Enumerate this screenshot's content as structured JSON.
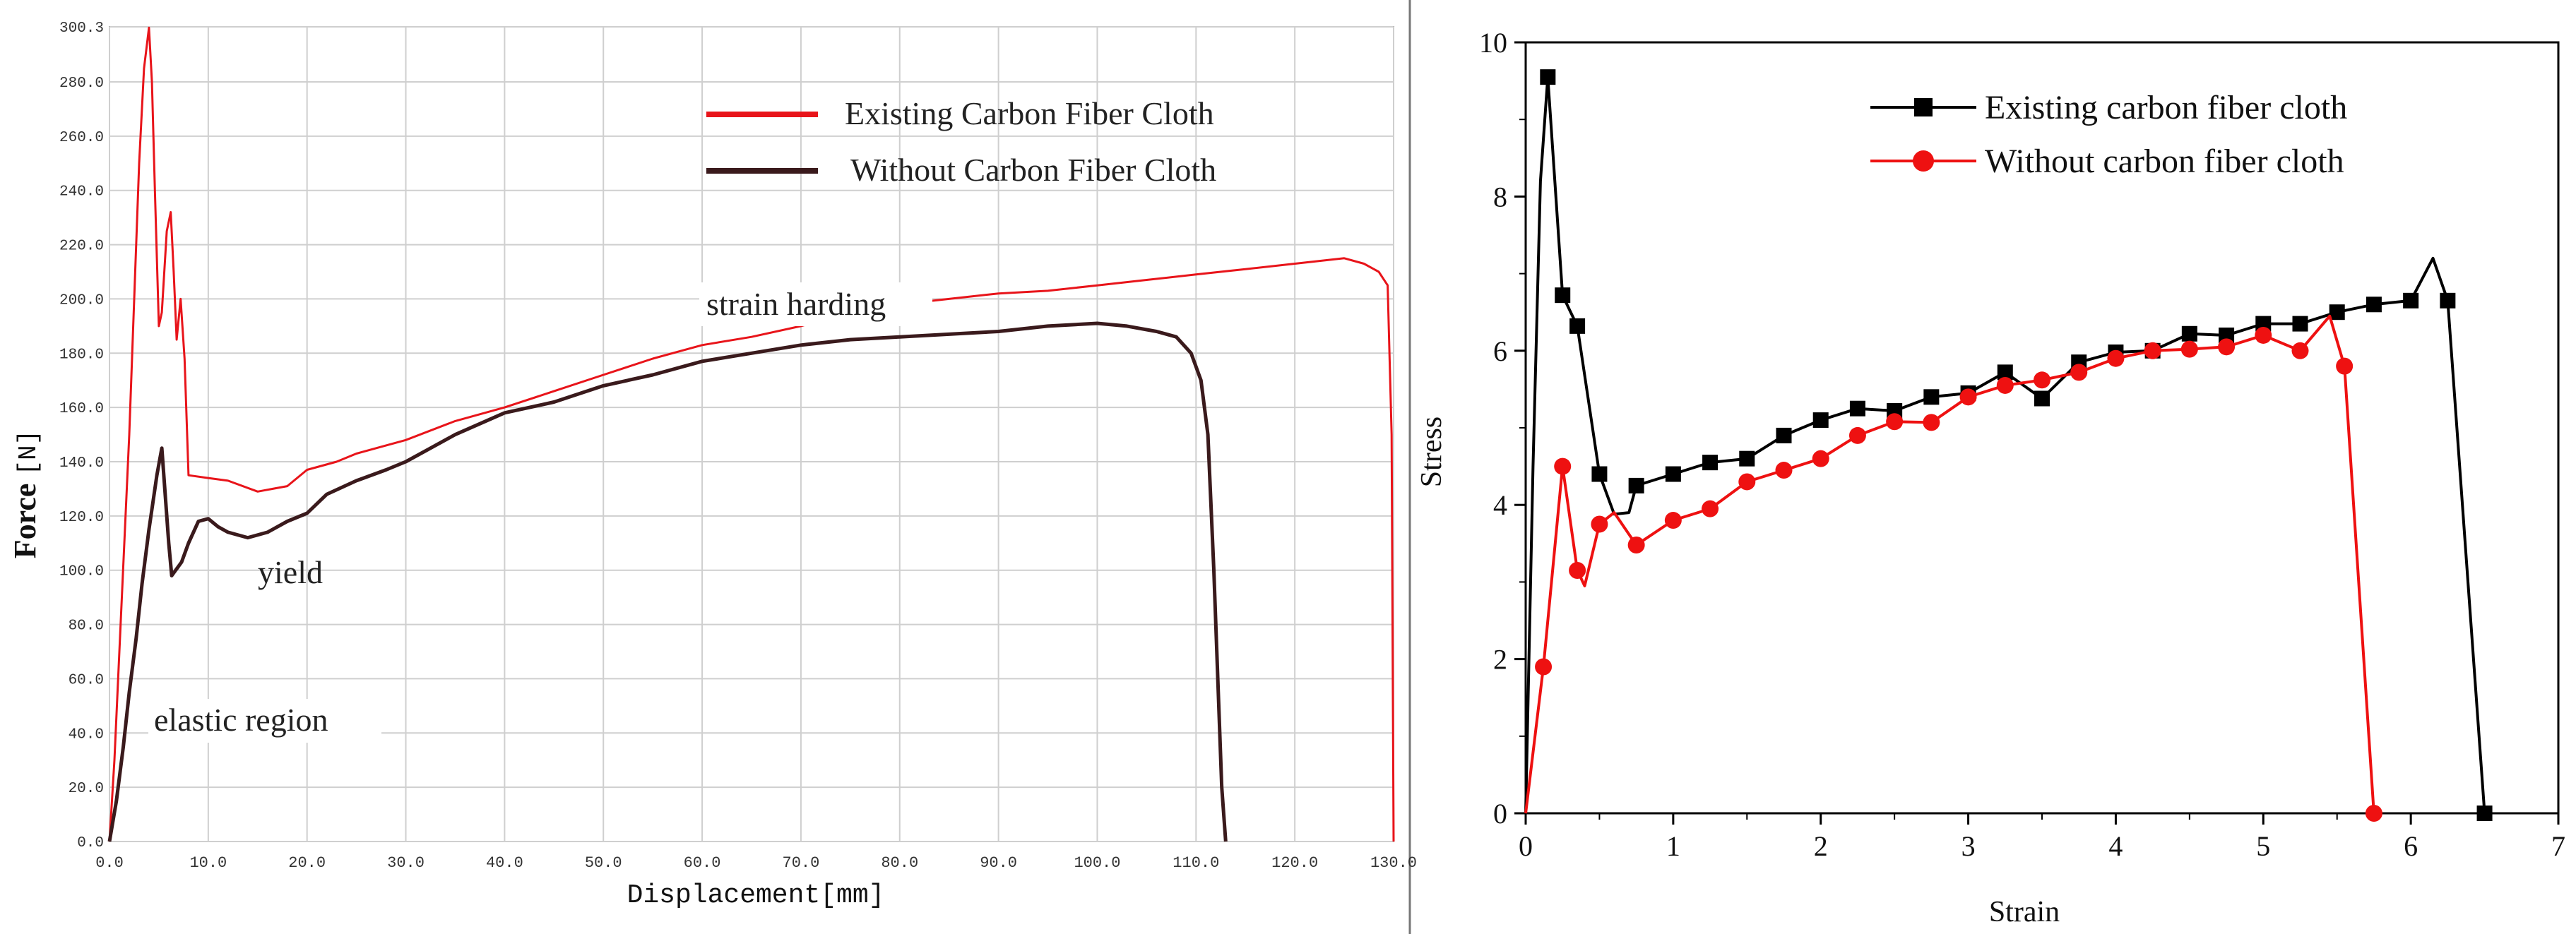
{
  "chart_data": [
    {
      "type": "line",
      "panel": "left",
      "xlabel": "Displacement",
      "xunit": "[mm]",
      "ylabel": "Force",
      "yunit": "[N]",
      "xlim": [
        0,
        130
      ],
      "ylim": [
        0,
        300.3
      ],
      "x_ticks": [
        0,
        10,
        20,
        30,
        40,
        50,
        60,
        70,
        80,
        90,
        100,
        110,
        120,
        130
      ],
      "x_tick_labels": [
        "0.0",
        "10.0",
        "20.0",
        "30.0",
        "40.0",
        "50.0",
        "60.0",
        "70.0",
        "80.0",
        "90.0",
        "100.0",
        "110.0",
        "120.0",
        "130.0"
      ],
      "y_ticks": [
        0,
        20,
        40,
        60,
        80,
        100,
        120,
        140,
        160,
        180,
        200,
        220,
        240,
        260,
        280,
        300.3
      ],
      "y_tick_labels": [
        "0.0",
        "20.0",
        "40.0",
        "60.0",
        "80.0",
        "100.0",
        "120.0",
        "140.0",
        "160.0",
        "180.0",
        "200.0",
        "220.0",
        "240.0",
        "260.0",
        "280.0",
        "300.3"
      ],
      "grid": true,
      "legend_position": "top-right",
      "annotations": [
        {
          "text": "strain harding",
          "x": 70,
          "y": 196
        },
        {
          "text": "yield",
          "x": 15,
          "y": 98
        },
        {
          "text": "elastic region",
          "x": 15,
          "y": 43
        }
      ],
      "series": [
        {
          "name": "Existing Carbon Fiber Cloth",
          "color": "#e8141a",
          "x": [
            0,
            0.5,
            1,
            1.5,
            2,
            2.5,
            3,
            3.5,
            4,
            4.3,
            4.6,
            5,
            5.3,
            5.8,
            6.2,
            6.5,
            6.8,
            7.2,
            7.6,
            8,
            10,
            12,
            15,
            18,
            20,
            23,
            25,
            30,
            35,
            40,
            45,
            50,
            55,
            60,
            65,
            70,
            75,
            80,
            85,
            90,
            95,
            100,
            105,
            110,
            115,
            120,
            125,
            127,
            128.5,
            129.4,
            129.8,
            130
          ],
          "y": [
            0,
            30,
            70,
            110,
            150,
            200,
            250,
            285,
            300,
            280,
            240,
            190,
            195,
            225,
            232,
            210,
            185,
            200,
            178,
            135,
            134,
            133,
            129,
            131,
            137,
            140,
            143,
            148,
            155,
            160,
            166,
            172,
            178,
            183,
            186,
            190,
            195,
            198,
            200,
            202,
            203,
            205,
            207,
            209,
            211,
            213,
            215,
            213,
            210,
            205,
            150,
            0
          ]
        },
        {
          "name": "Without Carbon Fiber Cloth",
          "color": "#3a1a1c",
          "x": [
            0,
            0.7,
            1.4,
            2,
            2.7,
            3.3,
            4,
            4.8,
            5.3,
            5.6,
            6,
            6.3,
            6.7,
            7.3,
            8,
            9,
            10,
            11,
            12,
            14,
            16,
            18,
            20,
            22,
            25,
            28,
            30,
            35,
            40,
            45,
            50,
            55,
            60,
            65,
            70,
            75,
            80,
            85,
            90,
            95,
            100,
            103,
            106,
            108,
            109.5,
            110.5,
            111.2,
            111.8,
            112.2,
            112.6,
            112.9,
            113
          ],
          "y": [
            0,
            15,
            35,
            55,
            75,
            95,
            115,
            135,
            145,
            130,
            110,
            98,
            100,
            103,
            110,
            118,
            119,
            116,
            114,
            112,
            114,
            118,
            121,
            128,
            133,
            137,
            140,
            150,
            158,
            162,
            168,
            172,
            177,
            180,
            183,
            185,
            186,
            187,
            188,
            190,
            191,
            190,
            188,
            186,
            180,
            170,
            150,
            100,
            60,
            20,
            5,
            0
          ]
        }
      ]
    },
    {
      "type": "line",
      "panel": "right",
      "xlabel": "Strain",
      "ylabel": "Stress",
      "xlim": [
        0,
        7
      ],
      "ylim": [
        0,
        10
      ],
      "x_ticks": [
        0,
        1,
        2,
        3,
        4,
        5,
        6,
        7
      ],
      "x_tick_labels": [
        "0",
        "1",
        "2",
        "3",
        "4",
        "5",
        "6",
        "7"
      ],
      "y_ticks": [
        0,
        2,
        4,
        6,
        8,
        10
      ],
      "y_tick_labels": [
        "0",
        "2",
        "4",
        "6",
        "8",
        "10"
      ],
      "grid": false,
      "legend_position": "top-right",
      "series": [
        {
          "name": "Existing carbon fiber cloth",
          "color": "#000000",
          "marker": "square",
          "x": [
            0,
            0.05,
            0.1,
            0.15,
            0.25,
            0.35,
            0.5,
            0.6,
            0.7,
            0.75,
            1,
            1.25,
            1.5,
            1.75,
            2,
            2.25,
            2.5,
            2.75,
            3,
            3.25,
            3.5,
            3.75,
            4,
            4.25,
            4.5,
            4.75,
            5,
            5.25,
            5.5,
            5.75,
            6,
            6.15,
            6.25,
            6.5
          ],
          "y": [
            0,
            4.5,
            8.2,
            9.55,
            6.72,
            6.32,
            4.4,
            3.88,
            3.9,
            4.25,
            4.4,
            4.55,
            4.6,
            4.9,
            5.1,
            5.25,
            5.22,
            5.4,
            5.45,
            5.72,
            5.38,
            5.85,
            5.98,
            6.0,
            6.22,
            6.2,
            6.35,
            6.35,
            6.5,
            6.6,
            6.65,
            7.2,
            6.65,
            0
          ],
          "markers_x": [
            0.15,
            0.25,
            0.35,
            0.5,
            0.75,
            1,
            1.25,
            1.5,
            1.75,
            2,
            2.25,
            2.5,
            2.75,
            3,
            3.25,
            3.5,
            3.75,
            4,
            4.25,
            4.5,
            4.75,
            5,
            5.25,
            5.5,
            5.75,
            6,
            6.25,
            6.5
          ],
          "markers_y": [
            9.55,
            6.72,
            6.32,
            4.4,
            4.25,
            4.4,
            4.55,
            4.6,
            4.9,
            5.1,
            5.25,
            5.22,
            5.4,
            5.45,
            5.72,
            5.38,
            5.85,
            5.98,
            6.0,
            6.22,
            6.2,
            6.35,
            6.35,
            6.5,
            6.6,
            6.65,
            6.65,
            0
          ]
        },
        {
          "name": "Without carbon fiber cloth",
          "color": "#ee1111",
          "marker": "circle",
          "x": [
            0,
            0.12,
            0.25,
            0.35,
            0.4,
            0.5,
            0.6,
            0.75,
            1,
            1.25,
            1.5,
            1.75,
            2,
            2.25,
            2.5,
            2.75,
            3,
            3.25,
            3.5,
            3.75,
            4,
            4.25,
            4.5,
            4.75,
            5,
            5.25,
            5.45,
            5.55,
            5.75
          ],
          "y": [
            0,
            1.9,
            4.5,
            3.15,
            2.95,
            3.75,
            3.9,
            3.48,
            3.8,
            3.95,
            4.3,
            4.45,
            4.6,
            4.9,
            5.08,
            5.07,
            5.4,
            5.55,
            5.62,
            5.72,
            5.9,
            6.0,
            6.02,
            6.05,
            6.2,
            6.0,
            6.45,
            5.8,
            0
          ],
          "markers_x": [
            0.12,
            0.25,
            0.35,
            0.5,
            0.75,
            1,
            1.25,
            1.5,
            1.75,
            2,
            2.25,
            2.5,
            2.75,
            3,
            3.25,
            3.5,
            3.75,
            4,
            4.25,
            4.5,
            4.75,
            5,
            5.25,
            5.55,
            5.75
          ],
          "markers_y": [
            1.9,
            4.5,
            3.15,
            3.75,
            3.48,
            3.8,
            3.95,
            4.3,
            4.45,
            4.6,
            4.9,
            5.08,
            5.07,
            5.4,
            5.55,
            5.62,
            5.72,
            5.9,
            6.0,
            6.02,
            6.05,
            6.2,
            6.0,
            5.8,
            0
          ]
        }
      ]
    }
  ]
}
